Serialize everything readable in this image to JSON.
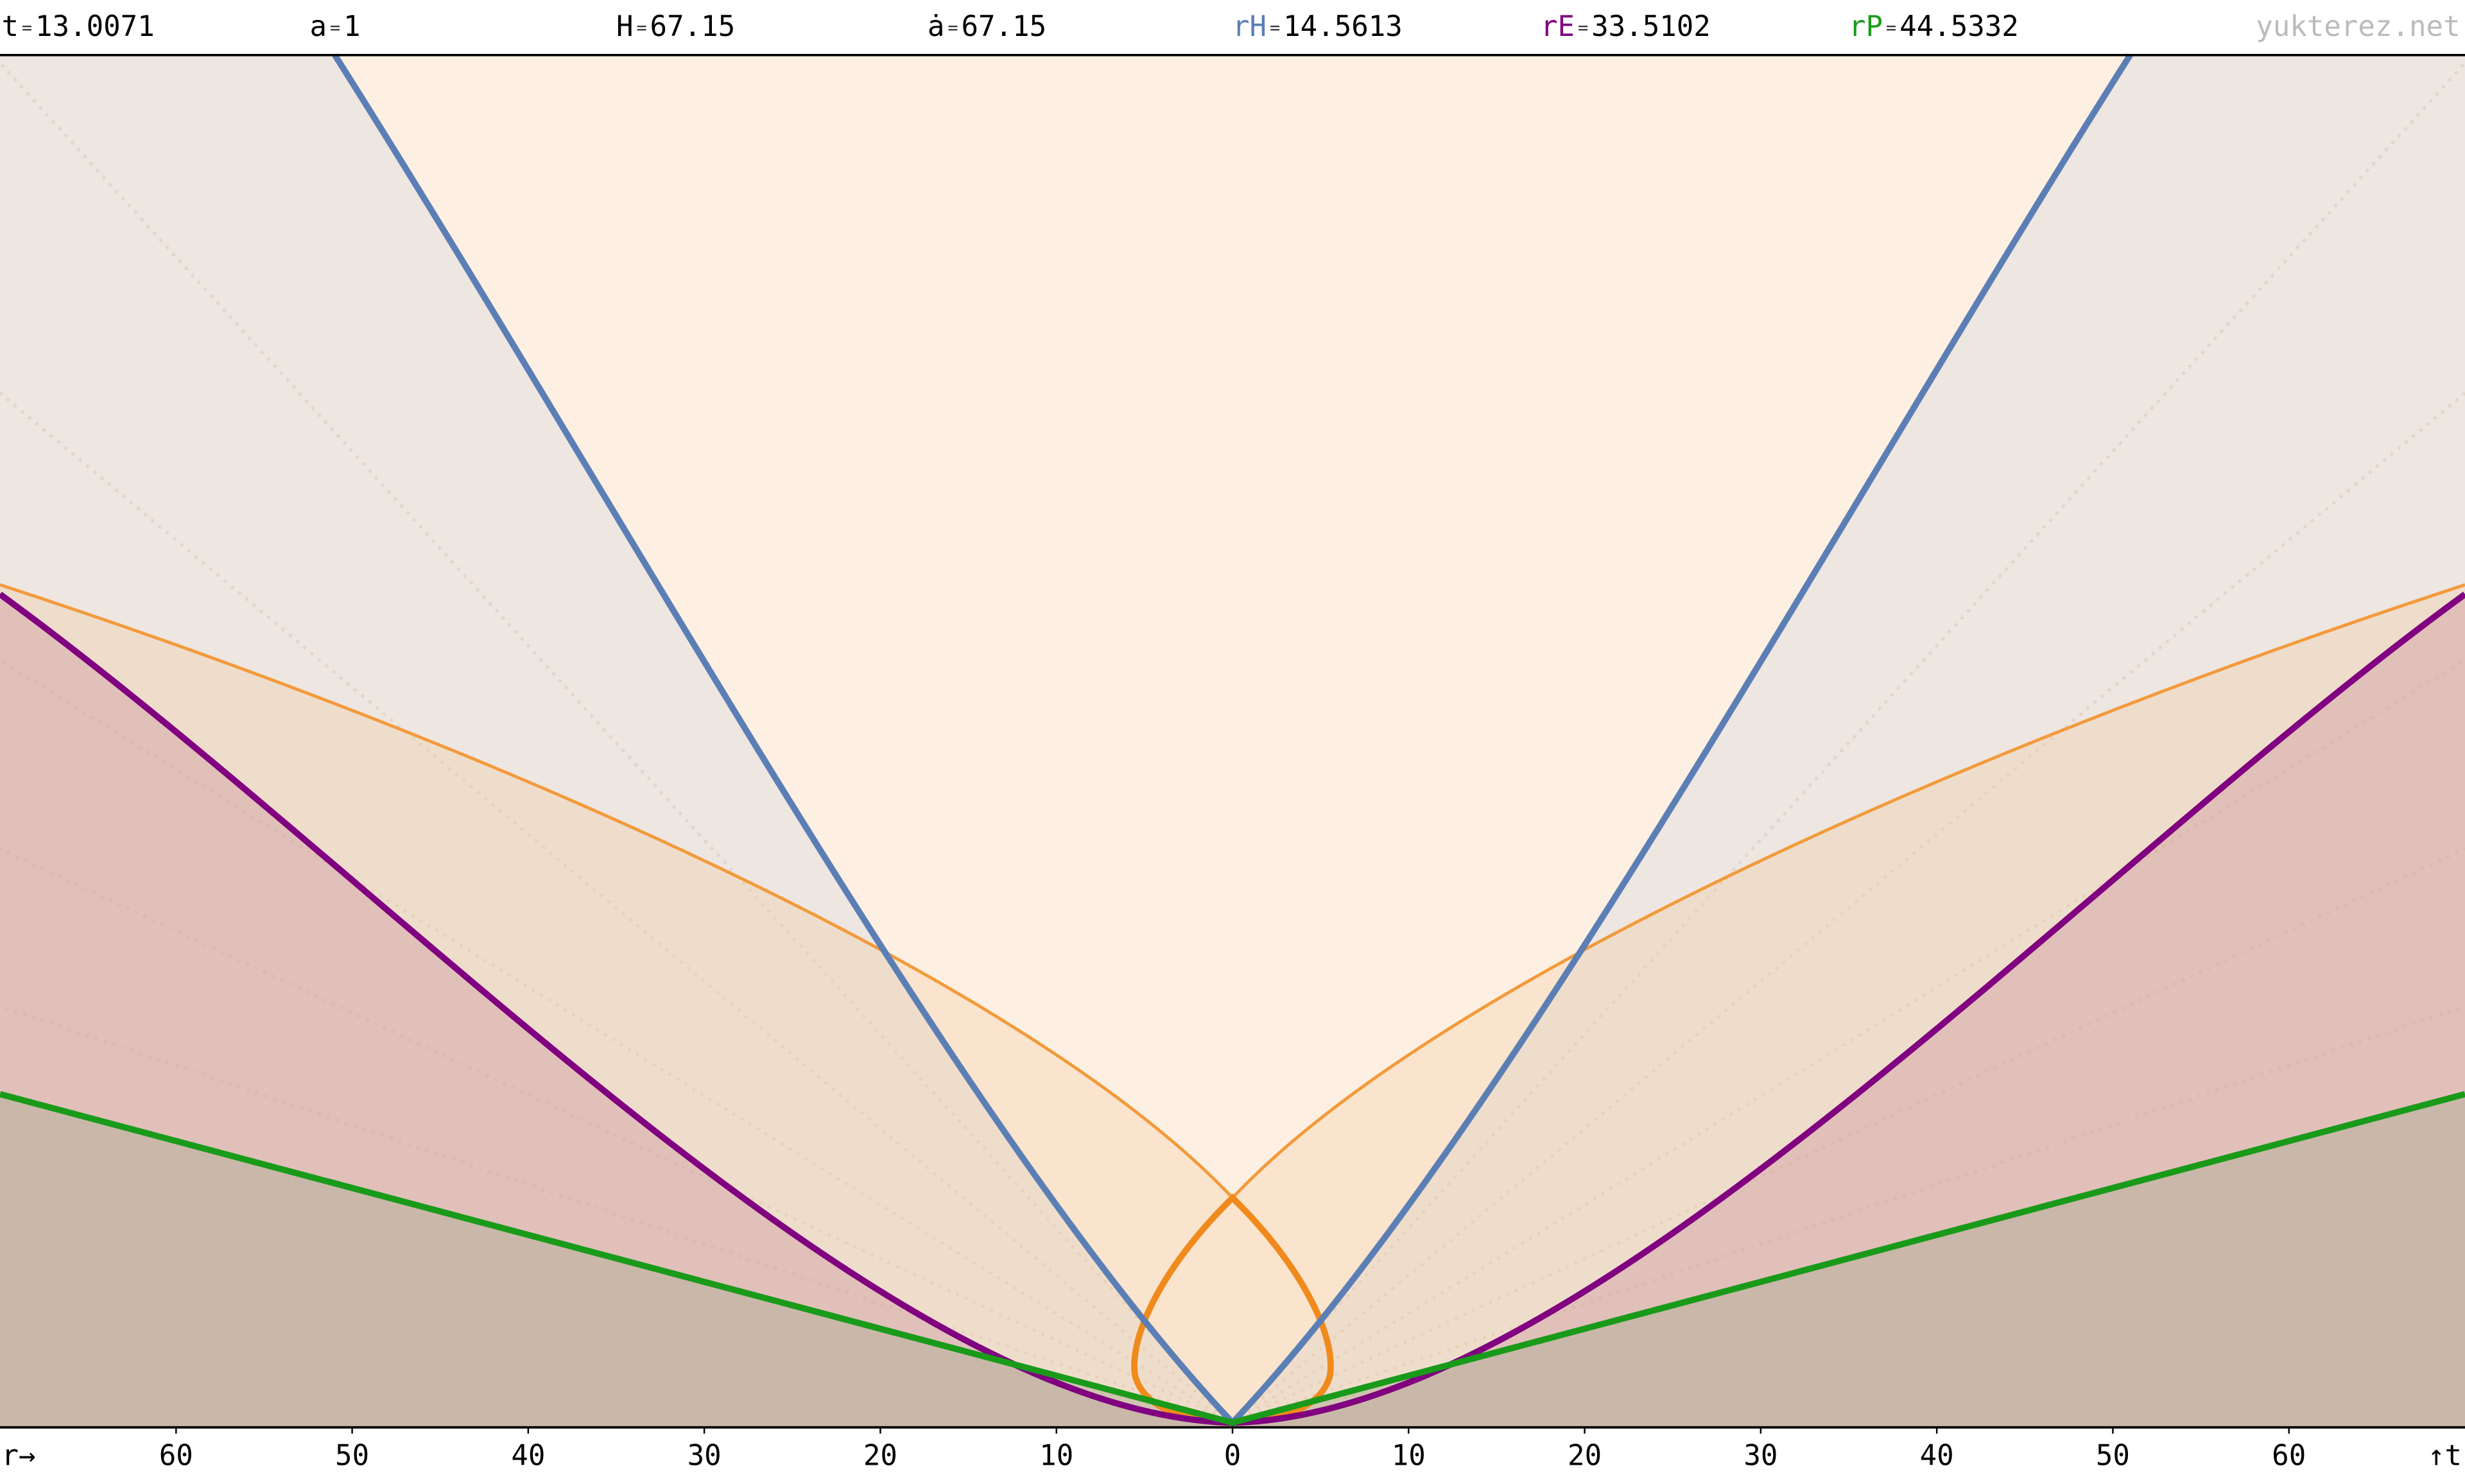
{
  "header": {
    "separator": "=",
    "items": [
      {
        "label": "t",
        "value": "13.0071",
        "color": "#000000"
      },
      {
        "label": "a",
        "value": "1",
        "color": "#000000"
      },
      {
        "label": "H",
        "value": "67.15",
        "color": "#000000"
      },
      {
        "label": "ȧ",
        "value": "67.15",
        "color": "#000000"
      },
      {
        "label": "rH",
        "value": "14.5613",
        "color": "#5b7fb5"
      },
      {
        "label": "rE",
        "value": "33.5102",
        "color": "#800080"
      },
      {
        "label": "rP",
        "value": "44.5332",
        "color": "#1a9a1a"
      }
    ],
    "site": "yukterez.net"
  },
  "axis": {
    "label_left": "r→",
    "label_right": "↑t",
    "ticks": [
      {
        "value": -60,
        "label": "60"
      },
      {
        "value": -50,
        "label": "50"
      },
      {
        "value": -40,
        "label": "40"
      },
      {
        "value": -30,
        "label": "30"
      },
      {
        "value": -20,
        "label": "20"
      },
      {
        "value": -10,
        "label": "10"
      },
      0,
      10,
      20,
      30,
      40,
      50,
      60
    ]
  }
}
